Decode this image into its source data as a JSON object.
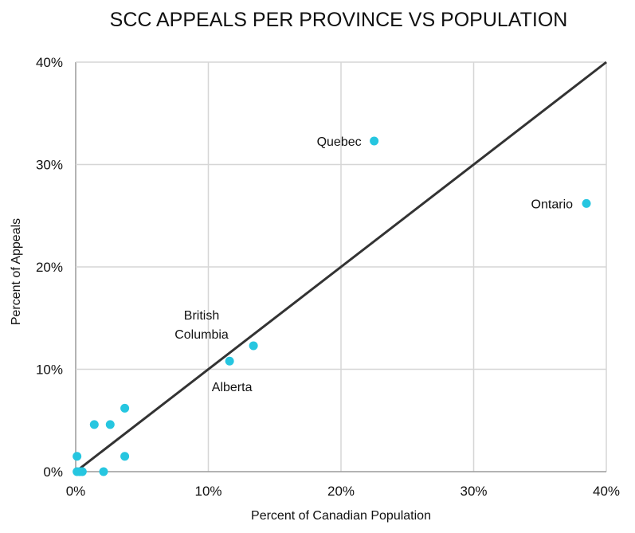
{
  "chart_data": {
    "type": "scatter",
    "title": "SCC APPEALS PER PROVINCE VS POPULATION",
    "xlabel": "Percent of Canadian Population",
    "ylabel": "Percent of Appeals",
    "xlim": [
      0,
      40
    ],
    "ylim": [
      0,
      40
    ],
    "x_ticks": [
      {
        "value": 0,
        "label": "0%"
      },
      {
        "value": 10,
        "label": "10%"
      },
      {
        "value": 20,
        "label": "20%"
      },
      {
        "value": 30,
        "label": "30%"
      },
      {
        "value": 40,
        "label": "40%"
      }
    ],
    "y_ticks": [
      {
        "value": 0,
        "label": "0%"
      },
      {
        "value": 10,
        "label": "10%"
      },
      {
        "value": 20,
        "label": "20%"
      },
      {
        "value": 30,
        "label": "30%"
      },
      {
        "value": 40,
        "label": "40%"
      }
    ],
    "grid": true,
    "reference_line": {
      "from": [
        0,
        0
      ],
      "to": [
        40,
        40
      ],
      "color": "#333333"
    },
    "point_color": "#26c6e0",
    "points": [
      {
        "x": 22.5,
        "y": 32.3,
        "label": "Quebec"
      },
      {
        "x": 38.5,
        "y": 26.2,
        "label": "Ontario"
      },
      {
        "x": 13.4,
        "y": 12.3,
        "label": "British Columbia"
      },
      {
        "x": 11.6,
        "y": 10.8,
        "label": "Alberta"
      },
      {
        "x": 3.7,
        "y": 6.2
      },
      {
        "x": 1.4,
        "y": 4.6
      },
      {
        "x": 2.6,
        "y": 4.6
      },
      {
        "x": 0.1,
        "y": 1.5
      },
      {
        "x": 3.7,
        "y": 1.5
      },
      {
        "x": 0.1,
        "y": 0.0
      },
      {
        "x": 0.3,
        "y": 0.0
      },
      {
        "x": 0.5,
        "y": 0.0
      },
      {
        "x": 2.1,
        "y": 0.0
      }
    ]
  }
}
